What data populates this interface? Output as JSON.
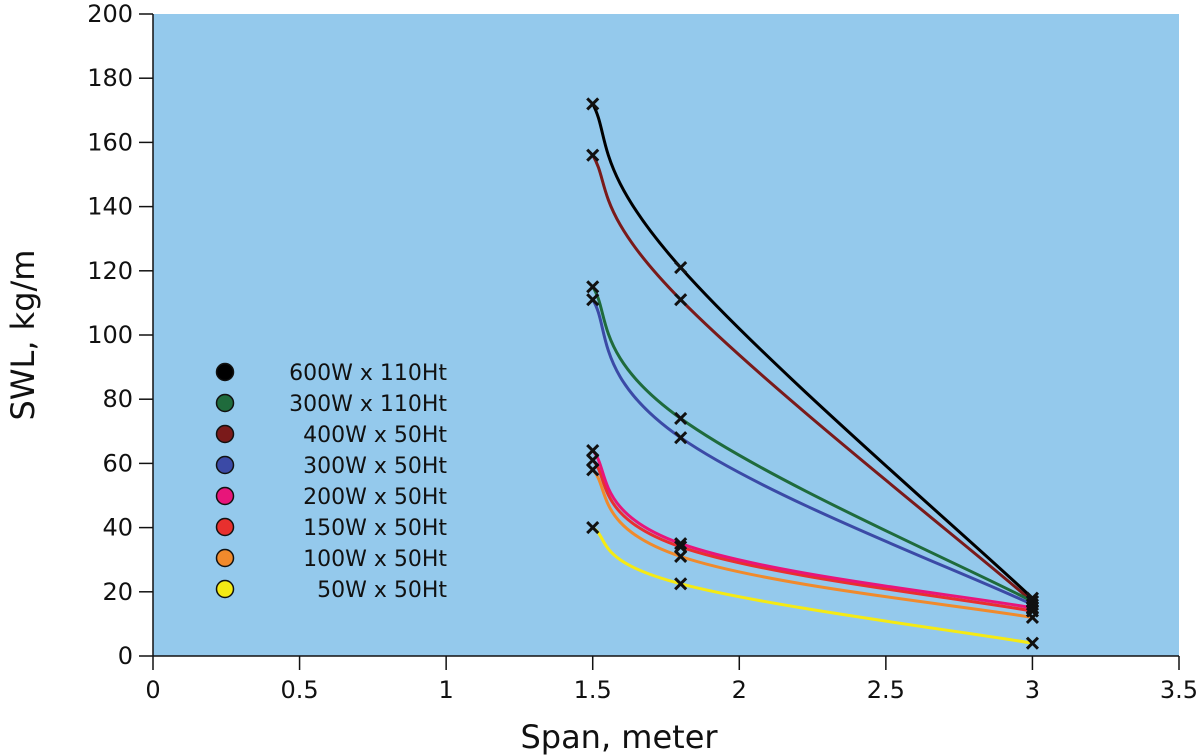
{
  "chart_data": {
    "type": "line",
    "title": "",
    "xlabel": "Span, meter",
    "ylabel": "SWL, kg/m",
    "xlim": [
      0,
      3.5
    ],
    "ylim": [
      0,
      200
    ],
    "x_ticks": [
      0,
      0.5,
      1,
      1.5,
      2,
      2.5,
      3,
      3.5
    ],
    "x_tick_labels": [
      "0",
      "0.5",
      "1",
      "1.5",
      "2",
      "2.5",
      "3",
      "3.5"
    ],
    "y_ticks": [
      0,
      20,
      40,
      60,
      80,
      100,
      120,
      140,
      160,
      180,
      200
    ],
    "y_tick_labels": [
      "0",
      "20",
      "40",
      "60",
      "80",
      "100",
      "120",
      "140",
      "160",
      "180",
      "200"
    ],
    "grid": false,
    "plot_background": "#94c9ec",
    "marker": "x",
    "legend_position": "center-left",
    "x": [
      1.5,
      1.8,
      3
    ],
    "series": [
      {
        "name": "600W x 110Ht",
        "color": "#000000",
        "values": [
          172,
          121,
          18
        ]
      },
      {
        "name": "300W x 110Ht",
        "color": "#1f6b3c",
        "values": [
          115,
          74,
          17
        ]
      },
      {
        "name": "400W x 50Ht",
        "color": "#7a1a1a",
        "values": [
          156,
          111,
          17
        ]
      },
      {
        "name": "300W x 50Ht",
        "color": "#3b4aa6",
        "values": [
          111,
          68,
          16
        ]
      },
      {
        "name": "200W x 50Ht",
        "color": "#e8157a",
        "values": [
          64,
          35,
          15
        ]
      },
      {
        "name": "150W x 50Ht",
        "color": "#e8302e",
        "values": [
          61,
          34,
          14
        ]
      },
      {
        "name": "100W x 50Ht",
        "color": "#f08a2c",
        "values": [
          58,
          31,
          12
        ]
      },
      {
        "name": "50W x 50Ht",
        "color": "#f5ea14",
        "values": [
          40,
          22.5,
          4
        ]
      }
    ]
  }
}
